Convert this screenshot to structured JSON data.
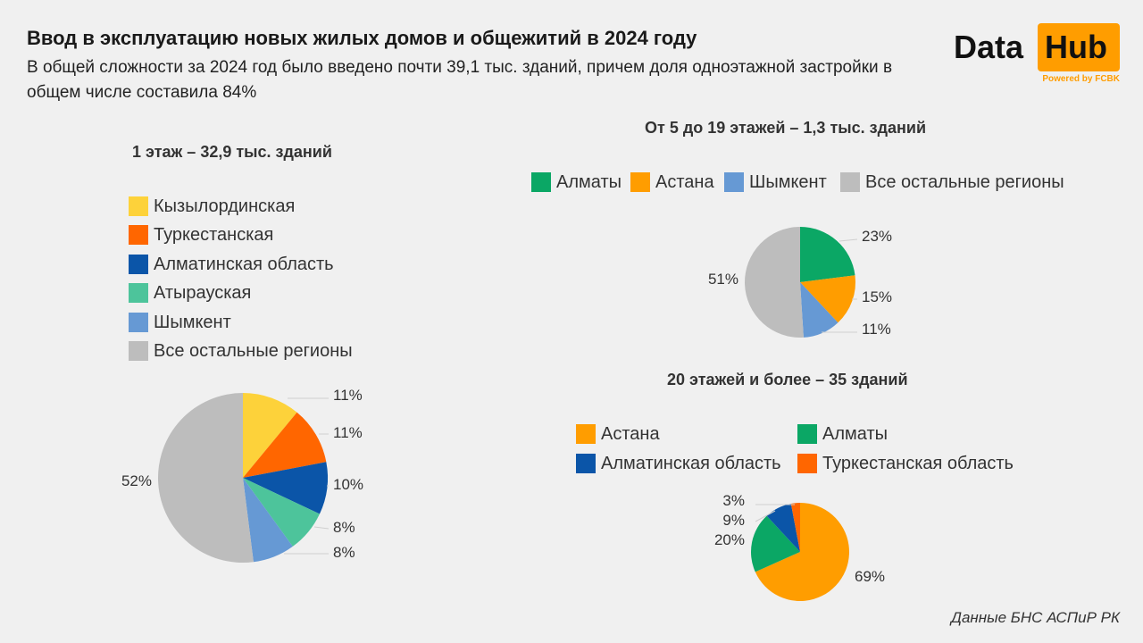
{
  "header": {
    "title": "Ввод в эксплуатацию новых жилых домов и общежитий в 2024 году",
    "subtitle": "В общей сложности за 2024 год было введено почти 39,1 тыс. зданий, причем доля одноэтажной застройки в общем числе составила 84%"
  },
  "logo": {
    "data_word": "Data",
    "hub_word": "Hub",
    "powered": "Powered by FCBK",
    "accent": "#ff9d00"
  },
  "source": "Данные БНС АСПиР РК",
  "chart_data": [
    {
      "type": "pie",
      "title": "1 этаж – 32,9 тыс. зданий",
      "slices": [
        {
          "label": "Кызылординская",
          "value": 11,
          "display": "11%",
          "color": "#fdd23a"
        },
        {
          "label": "Туркестанская",
          "value": 11,
          "display": "11%",
          "color": "#ff6600"
        },
        {
          "label": "Алматинская область",
          "value": 10,
          "display": "10%",
          "color": "#0b55a8"
        },
        {
          "label": "Атырауская",
          "value": 8,
          "display": "8%",
          "color": "#4dc49b"
        },
        {
          "label": "Шымкент",
          "value": 8,
          "display": "8%",
          "color": "#6699d4"
        },
        {
          "label": "Все остальные регионы",
          "value": 52,
          "display": "52%",
          "color": "#bdbdbd"
        }
      ],
      "legend_position": "top-left"
    },
    {
      "type": "pie",
      "title": "От 5 до 19 этажей – 1,3 тыс. зданий",
      "slices": [
        {
          "label": "Алматы",
          "value": 23,
          "display": "23%",
          "color": "#0ba765"
        },
        {
          "label": "Астана",
          "value": 15,
          "display": "15%",
          "color": "#ff9d00"
        },
        {
          "label": "Шымкент",
          "value": 11,
          "display": "11%",
          "color": "#6699d4"
        },
        {
          "label": "Все остальные регионы",
          "value": 51,
          "display": "51%",
          "color": "#bdbdbd"
        }
      ],
      "legend_position": "top"
    },
    {
      "type": "pie",
      "title": "20 этажей и более – 35 зданий",
      "slices": [
        {
          "label": "Астана",
          "value": 69,
          "display": "69%",
          "color": "#ff9d00"
        },
        {
          "label": "Алматы",
          "value": 20,
          "display": "20%",
          "color": "#0ba765"
        },
        {
          "label": "Алматинская область",
          "value": 9,
          "display": "9%",
          "color": "#0b55a8"
        },
        {
          "label": "Туркестанская область",
          "value": 3,
          "display": "3%",
          "color": "#ff6600"
        }
      ],
      "legend_position": "top"
    }
  ]
}
